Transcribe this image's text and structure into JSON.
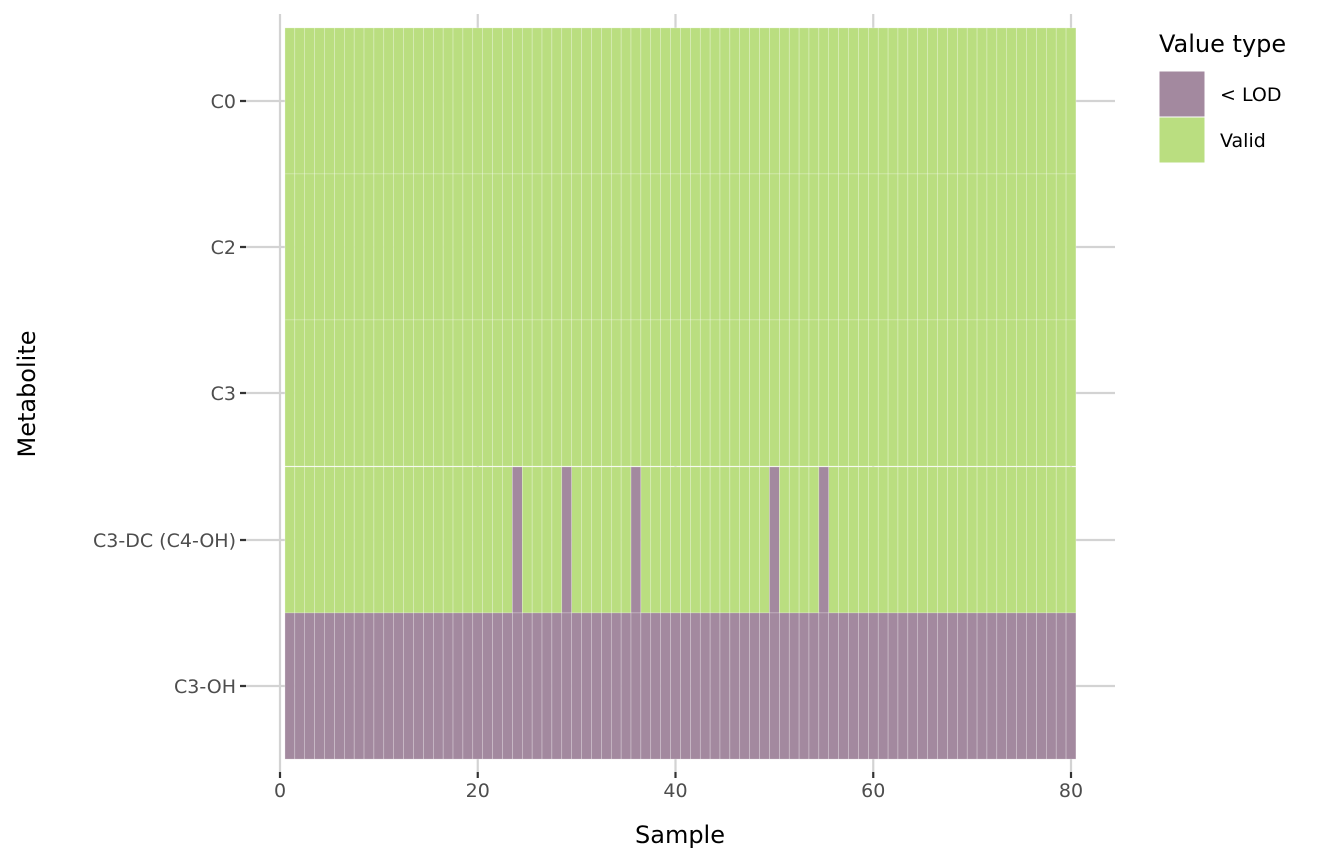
{
  "chart_data": {
    "type": "heatmap",
    "xlabel": "Sample",
    "ylabel": "Metabolite",
    "xlim": [
      0,
      80
    ],
    "x_ticks": [
      "0",
      "20",
      "40",
      "60",
      "80"
    ],
    "x_tick_values": [
      0,
      20,
      40,
      60,
      80
    ],
    "n_samples": 80,
    "categories": [
      "C0",
      "C2",
      "C3",
      "C3-DC (C4-OH)",
      "C3-OH"
    ],
    "grid": true,
    "legend": {
      "title": "Value type",
      "position": "right",
      "entries": [
        {
          "label": "< LOD",
          "color": "#a3899f"
        },
        {
          "label": "Valid",
          "color": "#bade80"
        }
      ]
    },
    "rows": [
      {
        "metabolite": "C0",
        "default": "Valid",
        "lod_samples": []
      },
      {
        "metabolite": "C2",
        "default": "Valid",
        "lod_samples": []
      },
      {
        "metabolite": "C3",
        "default": "Valid",
        "lod_samples": []
      },
      {
        "metabolite": "C3-DC (C4-OH)",
        "default": "Valid",
        "lod_samples": [
          24,
          29,
          36,
          50,
          55
        ]
      },
      {
        "metabolite": "C3-OH",
        "default": "< LOD",
        "lod_samples": []
      }
    ]
  }
}
